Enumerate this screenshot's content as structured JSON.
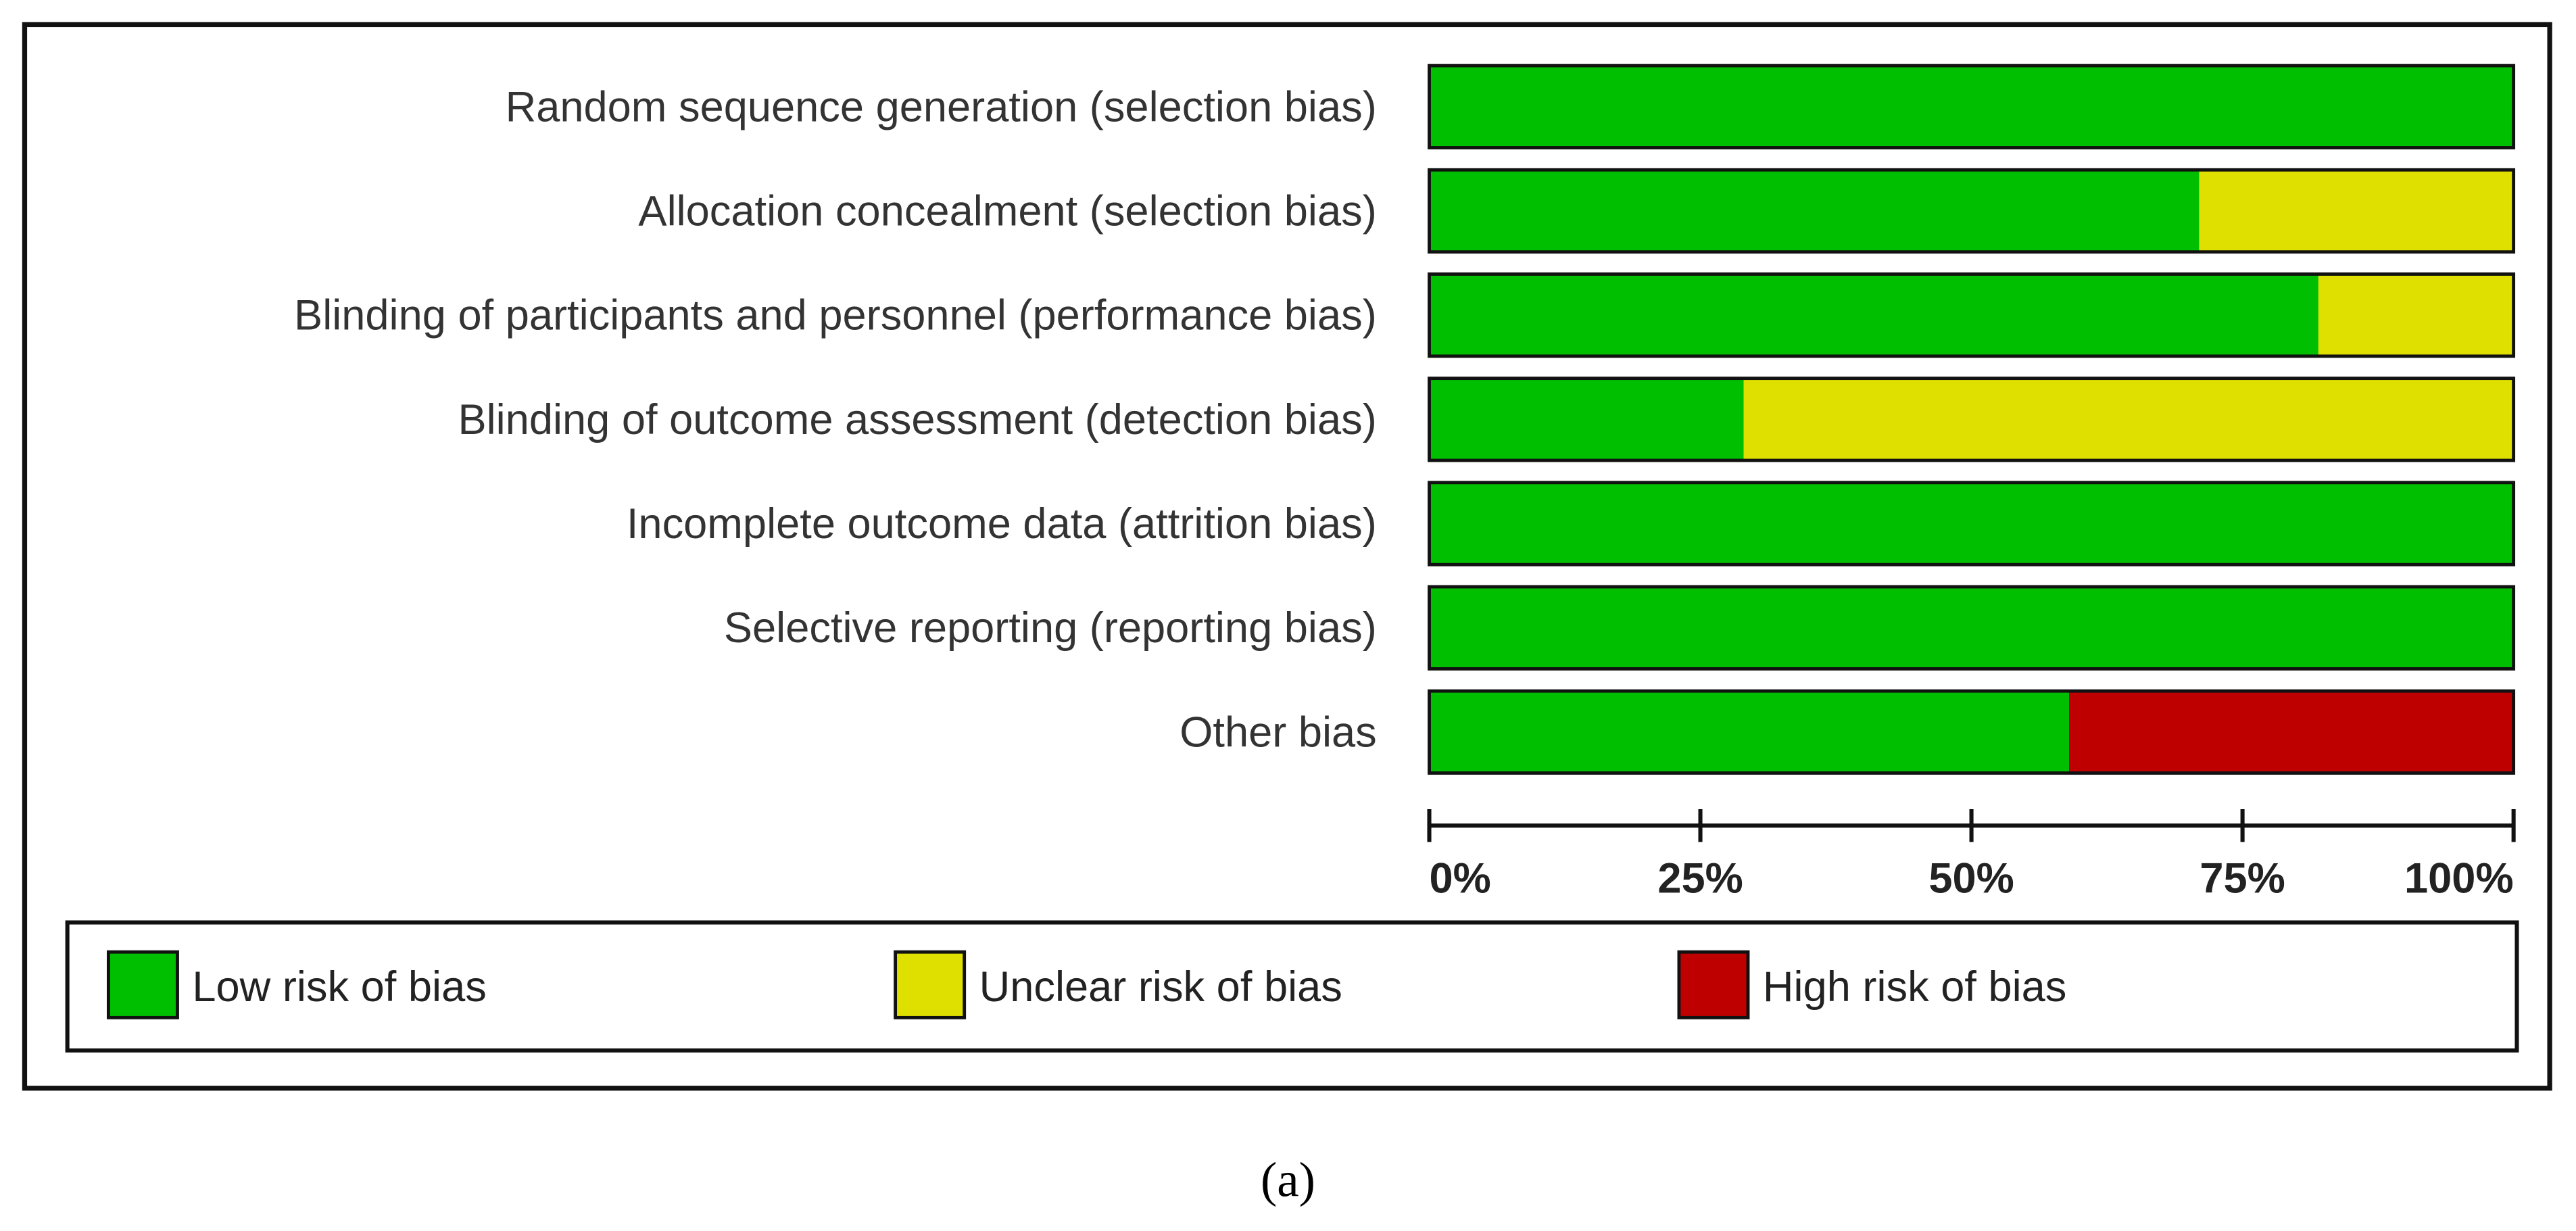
{
  "chart_data": {
    "type": "bar",
    "orientation": "horizontal",
    "stacked": true,
    "categories": [
      "Random sequence generation (selection bias)",
      "Allocation concealment (selection bias)",
      "Blinding of participants and personnel (performance bias)",
      "Blinding of outcome assessment (detection bias)",
      "Incomplete outcome data (attrition bias)",
      "Selective reporting (reporting bias)",
      "Other bias"
    ],
    "series": [
      {
        "name": "Low risk of bias",
        "color": "#00bf00",
        "values": [
          100,
          71,
          82,
          29,
          100,
          100,
          59
        ]
      },
      {
        "name": "Unclear risk of bias",
        "color": "#dfdf00",
        "values": [
          0,
          29,
          18,
          71,
          0,
          0,
          0
        ]
      },
      {
        "name": "High risk of bias",
        "color": "#bf0000",
        "values": [
          0,
          0,
          0,
          0,
          0,
          0,
          41
        ]
      }
    ],
    "xlim": [
      0,
      100
    ],
    "xticks": [
      {
        "value": 0,
        "label": "0%"
      },
      {
        "value": 25,
        "label": "25%"
      },
      {
        "value": 50,
        "label": "50%"
      },
      {
        "value": 75,
        "label": "75%"
      },
      {
        "value": 100,
        "label": "100%"
      }
    ]
  },
  "caption": "(a)"
}
